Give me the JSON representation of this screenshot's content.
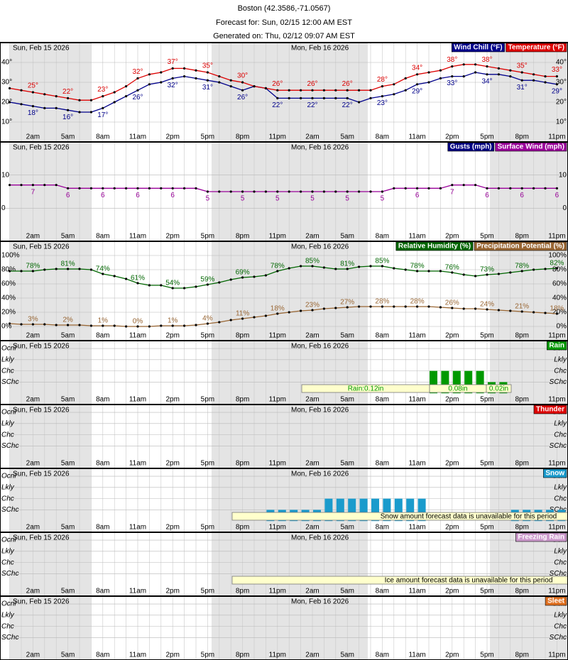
{
  "header": {
    "title": "Boston (42.3586,-71.0567)",
    "forecast": "Forecast for: Sun, 02/15 12:00 AM EST",
    "generated": "Generated on: Thu, 02/12 09:07 AM EST"
  },
  "days": [
    "Sun, Feb 15 2026",
    "Mon, Feb 16 2026"
  ],
  "hours": [
    null,
    null,
    "2am",
    null,
    null,
    "5am",
    null,
    null,
    "8am",
    null,
    null,
    "11am",
    null,
    null,
    "2pm",
    null,
    null,
    "5pm",
    null,
    null,
    "8pm",
    null,
    null,
    "11pm",
    null,
    null,
    "2am",
    null,
    null,
    "5am",
    null,
    null,
    "8am",
    null,
    null,
    "11am",
    null,
    null,
    "2pm",
    null,
    null,
    "5pm",
    null,
    null,
    "8pm",
    null,
    null,
    "11pm"
  ],
  "chart_data": [
    {
      "type": "line",
      "ylim": [
        0,
        50
      ],
      "yticks": [
        {
          "value": 10,
          "label": "10°"
        },
        {
          "value": 20,
          "label": "20°"
        },
        {
          "value": 30,
          "label": "30°"
        },
        {
          "value": 40,
          "label": "40°"
        }
      ],
      "grid": true,
      "series": [
        {
          "name": "Wind Chill (°F)",
          "color": "#00008b",
          "values": [
            20,
            19,
            18,
            17,
            17,
            16,
            15,
            15,
            17,
            20,
            23,
            26,
            29,
            30,
            32,
            33,
            32,
            31,
            30,
            28,
            26,
            28,
            27,
            22,
            22,
            22,
            22,
            22,
            22,
            22,
            20,
            22,
            23,
            24,
            26,
            29,
            30,
            32,
            33,
            33,
            35,
            34,
            34,
            33,
            31,
            31,
            30,
            29
          ],
          "value_labels": [
            null,
            null,
            "18°",
            null,
            null,
            "16°",
            null,
            null,
            "17°",
            null,
            null,
            "26°",
            null,
            null,
            "32°",
            null,
            null,
            "31°",
            null,
            null,
            "26°",
            null,
            null,
            "22°",
            null,
            null,
            "22°",
            null,
            null,
            "22°",
            null,
            null,
            "23°",
            null,
            null,
            "29°",
            null,
            null,
            "33°",
            null,
            null,
            "34°",
            null,
            null,
            "31°",
            null,
            null,
            "29°"
          ]
        },
        {
          "name": "Temperature (°F)",
          "color": "#dd0000",
          "values": [
            27,
            26,
            25,
            24,
            23,
            22,
            21,
            21,
            23,
            25,
            28,
            32,
            34,
            35,
            37,
            37,
            36,
            35,
            33,
            31,
            30,
            28,
            27,
            26,
            26,
            26,
            26,
            26,
            26,
            26,
            26,
            26,
            28,
            29,
            32,
            34,
            35,
            36,
            38,
            39,
            39,
            38,
            37,
            36,
            35,
            34,
            33,
            33
          ],
          "value_labels": [
            null,
            null,
            "25°",
            null,
            null,
            "22°",
            null,
            null,
            "23°",
            null,
            null,
            "32°",
            null,
            null,
            "37°",
            null,
            null,
            "35°",
            null,
            null,
            "30°",
            null,
            null,
            "26°",
            null,
            null,
            "26°",
            null,
            null,
            "26°",
            null,
            null,
            "28°",
            null,
            null,
            "34°",
            null,
            null,
            "38°",
            null,
            null,
            "38°",
            null,
            null,
            "35°",
            null,
            null,
            "33°"
          ]
        }
      ]
    },
    {
      "type": "line",
      "ylim": [
        -10,
        20
      ],
      "yticks": [
        0,
        10
      ],
      "grid": true,
      "series": [
        {
          "name": "Gusts (mph)",
          "color": "#000080"
        },
        {
          "name": "Surface Wind (mph)",
          "color": "#990099",
          "values": [
            7,
            7,
            7,
            7,
            7,
            6,
            6,
            6,
            6,
            6,
            6,
            6,
            6,
            6,
            6,
            6,
            6,
            5,
            5,
            5,
            5,
            5,
            5,
            5,
            5,
            5,
            5,
            5,
            5,
            5,
            5,
            5,
            5,
            6,
            6,
            6,
            6,
            6,
            7,
            7,
            7,
            6,
            6,
            6,
            6,
            6,
            6,
            6
          ]
        }
      ]
    },
    {
      "type": "line",
      "ylim": [
        -20,
        120
      ],
      "yticks": [
        {
          "value": 0,
          "label": "0%"
        },
        {
          "value": 20,
          "label": "20%"
        },
        {
          "value": 40,
          "label": "40%"
        },
        {
          "value": 60,
          "label": "60%"
        },
        {
          "value": 80,
          "label": "80%"
        },
        {
          "value": 100,
          "label": "100%"
        }
      ],
      "grid": true,
      "series": [
        {
          "name": "Relative Humidity (%)",
          "color": "#006600",
          "values": [
            78,
            78,
            78,
            80,
            81,
            81,
            81,
            80,
            74,
            71,
            67,
            61,
            58,
            58,
            54,
            54,
            56,
            59,
            62,
            66,
            69,
            70,
            72,
            78,
            82,
            85,
            85,
            83,
            81,
            81,
            84,
            85,
            85,
            82,
            80,
            78,
            78,
            78,
            76,
            73,
            71,
            73,
            74,
            76,
            78,
            80,
            81,
            82
          ],
          "value_labels": [
            null,
            null,
            "78%",
            null,
            null,
            "81%",
            null,
            null,
            "74%",
            null,
            null,
            "61%",
            null,
            null,
            "54%",
            null,
            null,
            "59%",
            null,
            null,
            "69%",
            null,
            null,
            "78%",
            null,
            null,
            "85%",
            null,
            null,
            "81%",
            null,
            null,
            "85%",
            null,
            null,
            "78%",
            null,
            null,
            "76%",
            null,
            null,
            "73%",
            null,
            null,
            "78%",
            null,
            null,
            "82%"
          ]
        },
        {
          "name": "Precipitation Potential (%)",
          "color": "#996633",
          "values": [
            4,
            3,
            3,
            3,
            2,
            2,
            2,
            1,
            1,
            1,
            0,
            0,
            0,
            1,
            1,
            1,
            2,
            4,
            6,
            9,
            11,
            13,
            15,
            18,
            20,
            22,
            23,
            25,
            26,
            27,
            28,
            28,
            28,
            28,
            28,
            28,
            28,
            27,
            26,
            25,
            25,
            24,
            23,
            22,
            21,
            20,
            19,
            18
          ],
          "value_labels": [
            null,
            null,
            "3%",
            null,
            null,
            "2%",
            null,
            null,
            "1%",
            null,
            null,
            "0%",
            null,
            null,
            "1%",
            null,
            null,
            "4%",
            null,
            null,
            "11%",
            null,
            null,
            "18%",
            null,
            null,
            "23%",
            null,
            null,
            "27%",
            null,
            null,
            "28%",
            null,
            null,
            "28%",
            null,
            null,
            "26%",
            null,
            null,
            "24%",
            null,
            null,
            "21%",
            null,
            null,
            "18%"
          ]
        }
      ]
    },
    {
      "type": "bar",
      "ylim": [
        -1,
        4.7
      ],
      "yticks": [
        {
          "value": 1,
          "label": "SChc"
        },
        {
          "value": 2,
          "label": "Chc"
        },
        {
          "value": 3,
          "label": "Lkly"
        },
        {
          "value": 4,
          "label": "Ocnl"
        }
      ],
      "grid": true,
      "series": [
        {
          "name": "Rain",
          "color": "#009900",
          "values": [
            0,
            0,
            0,
            0,
            0,
            0,
            0,
            0,
            0,
            0,
            0,
            0,
            0,
            0,
            0,
            0,
            0,
            0,
            0,
            0,
            0,
            0,
            0,
            0,
            0,
            0,
            0,
            0,
            0,
            0,
            0,
            0,
            0,
            0,
            0,
            0,
            2,
            2,
            2,
            2,
            2,
            1,
            1,
            0,
            0,
            0,
            0,
            0
          ]
        }
      ],
      "annotations": [
        "Rain:0.12in",
        "0.08in",
        "0.02in"
      ]
    },
    {
      "type": "bar",
      "ylim": [
        -1,
        4.7
      ],
      "yticks": [
        {
          "value": 1,
          "label": "SChc"
        },
        {
          "value": 2,
          "label": "Chc"
        },
        {
          "value": 3,
          "label": "Lkly"
        },
        {
          "value": 4,
          "label": "Ocnl"
        }
      ],
      "grid": true,
      "series": [
        {
          "name": "Thunder",
          "color": "#dd0000"
        }
      ]
    },
    {
      "type": "bar",
      "ylim": [
        -1,
        4.7
      ],
      "yticks": [
        {
          "value": 1,
          "label": "SChc"
        },
        {
          "value": 2,
          "label": "Chc"
        },
        {
          "value": 3,
          "label": "Lkly"
        },
        {
          "value": 4,
          "label": "Ocnl"
        }
      ],
      "grid": true,
      "series": [
        {
          "name": "Snow",
          "color": "#1a9bcc",
          "values": [
            0,
            0,
            0,
            0,
            0,
            0,
            0,
            0,
            0,
            0,
            0,
            0,
            0,
            0,
            0,
            0,
            0,
            0,
            0,
            0,
            0,
            0,
            1,
            1,
            1,
            1,
            1,
            2,
            2,
            2,
            2,
            2,
            2,
            2,
            2,
            2,
            0,
            0,
            0,
            0,
            0,
            0,
            0,
            1,
            1,
            1,
            1,
            1
          ]
        }
      ],
      "annotations": [
        "Snow amount forecast data is unavailable for this period"
      ]
    },
    {
      "type": "bar",
      "ylim": [
        -1,
        4.7
      ],
      "yticks": [
        {
          "value": 1,
          "label": "SChc"
        },
        {
          "value": 2,
          "label": "Chc"
        },
        {
          "value": 3,
          "label": "Lkly"
        },
        {
          "value": 4,
          "label": "Ocnl"
        }
      ],
      "grid": true,
      "series": [
        {
          "name": "Freezing Rain",
          "color": "#cc99cc"
        }
      ],
      "annotations": [
        "Ice amount forecast data is unavailable for this period"
      ]
    },
    {
      "type": "bar",
      "ylim": [
        -1,
        4.7
      ],
      "yticks": [
        {
          "value": 1,
          "label": "SChc"
        },
        {
          "value": 2,
          "label": "Chc"
        },
        {
          "value": 3,
          "label": "Lkly"
        },
        {
          "value": 4,
          "label": "Ocnl"
        }
      ],
      "grid": true,
      "series": [
        {
          "name": "Sleet",
          "color": "#e07020"
        }
      ]
    }
  ]
}
